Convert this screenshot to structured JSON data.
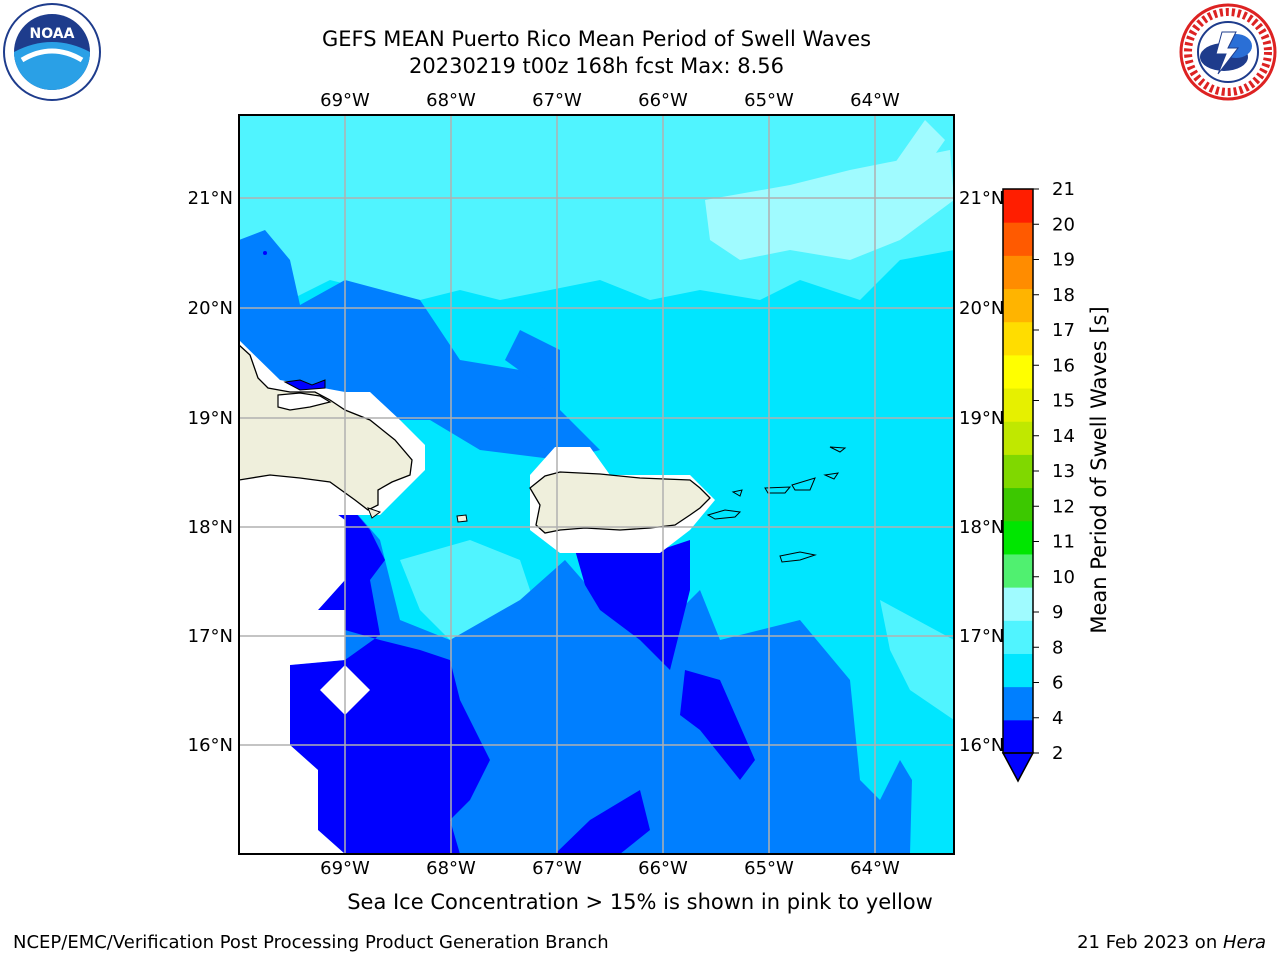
{
  "header": {
    "title_line1": "GEFS MEAN Puerto Rico Mean Period of Swell Waves",
    "title_line2": "20230219 t00z 168h fcst   Max: 8.56"
  },
  "logos": {
    "left": "noaa-logo",
    "right": "nws-logo",
    "noaa_text": "NOAA"
  },
  "map": {
    "region": "Puerto Rico",
    "lon_labels": [
      "69°W",
      "68°W",
      "67°W",
      "66°W",
      "65°W",
      "64°W"
    ],
    "lat_labels": [
      "21°N",
      "20°N",
      "19°N",
      "18°N",
      "17°N",
      "16°N"
    ],
    "land_color": "#efefdc",
    "gridline_color": "#b0b0b0"
  },
  "colorbar": {
    "label": "Mean Period of Swell Waves [s]",
    "ticks": [
      "21",
      "20",
      "19",
      "18",
      "17",
      "16",
      "15",
      "14",
      "13",
      "12",
      "11",
      "10",
      "9",
      "8",
      "6",
      "4",
      "2"
    ],
    "extend": "min",
    "colors": [
      "#0000ff",
      "#007fff",
      "#00e6ff",
      "#50f4ff",
      "#a0fbff",
      "#50f070",
      "#00e600",
      "#3cc800",
      "#80d800",
      "#c0e800",
      "#e6f000",
      "#ffff00",
      "#ffdd00",
      "#ffb400",
      "#ff8c00",
      "#ff5a00",
      "#ff1e00"
    ]
  },
  "notes": {
    "ice": "Sea Ice Concentration > 15% is shown in pink to yellow"
  },
  "footer": {
    "left": "NCEP/EMC/Verification Post Processing Product Generation Branch",
    "right_prefix": "21 Feb 2023 on ",
    "right_host": "Hera"
  }
}
